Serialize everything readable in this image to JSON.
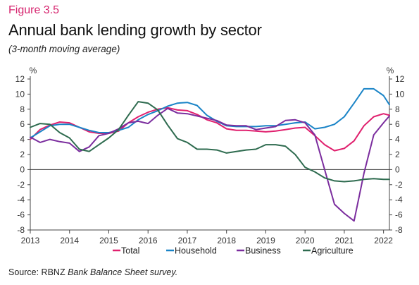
{
  "figure_label": "Figure 3.5",
  "title": "Annual bank lending growth by sector",
  "subtitle": "(3-month moving average)",
  "source_prefix": "Source: RBNZ ",
  "source_italic": "Bank Balance Sheet survey.",
  "chart_data": {
    "type": "line",
    "x": [
      2013.0,
      2013.25,
      2013.5,
      2013.75,
      2014.0,
      2014.25,
      2014.5,
      2014.75,
      2015.0,
      2015.25,
      2015.5,
      2015.75,
      2016.0,
      2016.25,
      2016.5,
      2016.75,
      2017.0,
      2017.25,
      2017.5,
      2017.75,
      2018.0,
      2018.25,
      2018.5,
      2018.75,
      2019.0,
      2019.25,
      2019.5,
      2019.75,
      2020.0,
      2020.25,
      2020.5,
      2020.75,
      2021.0,
      2021.25,
      2021.5,
      2021.75,
      2022.0,
      2022.15
    ],
    "series": [
      {
        "name": "Total",
        "color": "#e0206e",
        "values": [
          4.0,
          5.3,
          5.9,
          6.3,
          6.2,
          5.6,
          5.0,
          4.8,
          4.8,
          5.1,
          6.2,
          7.0,
          7.6,
          8.0,
          8.2,
          7.9,
          7.8,
          7.3,
          6.6,
          6.2,
          5.4,
          5.2,
          5.2,
          5.1,
          5.0,
          5.1,
          5.3,
          5.5,
          5.6,
          4.5,
          3.3,
          2.5,
          2.8,
          3.8,
          5.8,
          7.0,
          7.4,
          7.2
        ]
      },
      {
        "name": "Household",
        "color": "#1a84c7",
        "values": [
          4.2,
          5.0,
          5.8,
          6.0,
          6.0,
          5.6,
          5.2,
          4.9,
          4.9,
          5.2,
          5.6,
          6.6,
          7.3,
          7.8,
          8.4,
          8.8,
          8.9,
          8.5,
          7.2,
          6.4,
          5.8,
          5.7,
          5.7,
          5.7,
          5.8,
          5.8,
          6.0,
          6.2,
          6.3,
          5.4,
          5.6,
          6.0,
          7.0,
          8.8,
          10.7,
          10.7,
          9.8,
          8.6
        ]
      },
      {
        "name": "Business",
        "color": "#7b2d9e",
        "values": [
          4.3,
          3.6,
          4.0,
          3.7,
          3.5,
          2.4,
          3.0,
          4.5,
          4.8,
          5.4,
          6.2,
          6.4,
          6.1,
          7.2,
          8.1,
          7.5,
          7.4,
          7.1,
          6.8,
          6.5,
          5.9,
          5.8,
          5.8,
          5.3,
          5.5,
          5.7,
          6.5,
          6.6,
          6.2,
          4.6,
          0.0,
          -4.6,
          -5.8,
          -6.8,
          -0.5,
          4.6,
          6.2,
          7.1
        ]
      },
      {
        "name": "Agriculture",
        "color": "#2e6b4f",
        "values": [
          5.6,
          6.1,
          6.0,
          4.9,
          4.2,
          2.7,
          2.4,
          3.3,
          4.2,
          5.3,
          7.2,
          9.0,
          8.8,
          7.9,
          5.9,
          4.1,
          3.6,
          2.7,
          2.7,
          2.6,
          2.2,
          2.4,
          2.6,
          2.7,
          3.3,
          3.3,
          3.1,
          2.0,
          0.3,
          -0.3,
          -1.1,
          -1.5,
          -1.6,
          -1.5,
          -1.3,
          -1.2,
          -1.3,
          -1.3
        ]
      }
    ],
    "x_ticks": [
      "2013",
      "2014",
      "2015",
      "2016",
      "2017",
      "2018",
      "2019",
      "2020",
      "2021",
      "2022"
    ],
    "y_ticks": [
      "12",
      "10",
      "8",
      "6",
      "4",
      "2",
      "0",
      "-2",
      "-4",
      "-6",
      "-8"
    ],
    "ylabel_left": "%",
    "ylabel_right": "%",
    "xlim": [
      2013,
      2022.15
    ],
    "ylim": [
      -8,
      12
    ],
    "grid": false,
    "zero_line": true,
    "legend_position": "bottom"
  }
}
